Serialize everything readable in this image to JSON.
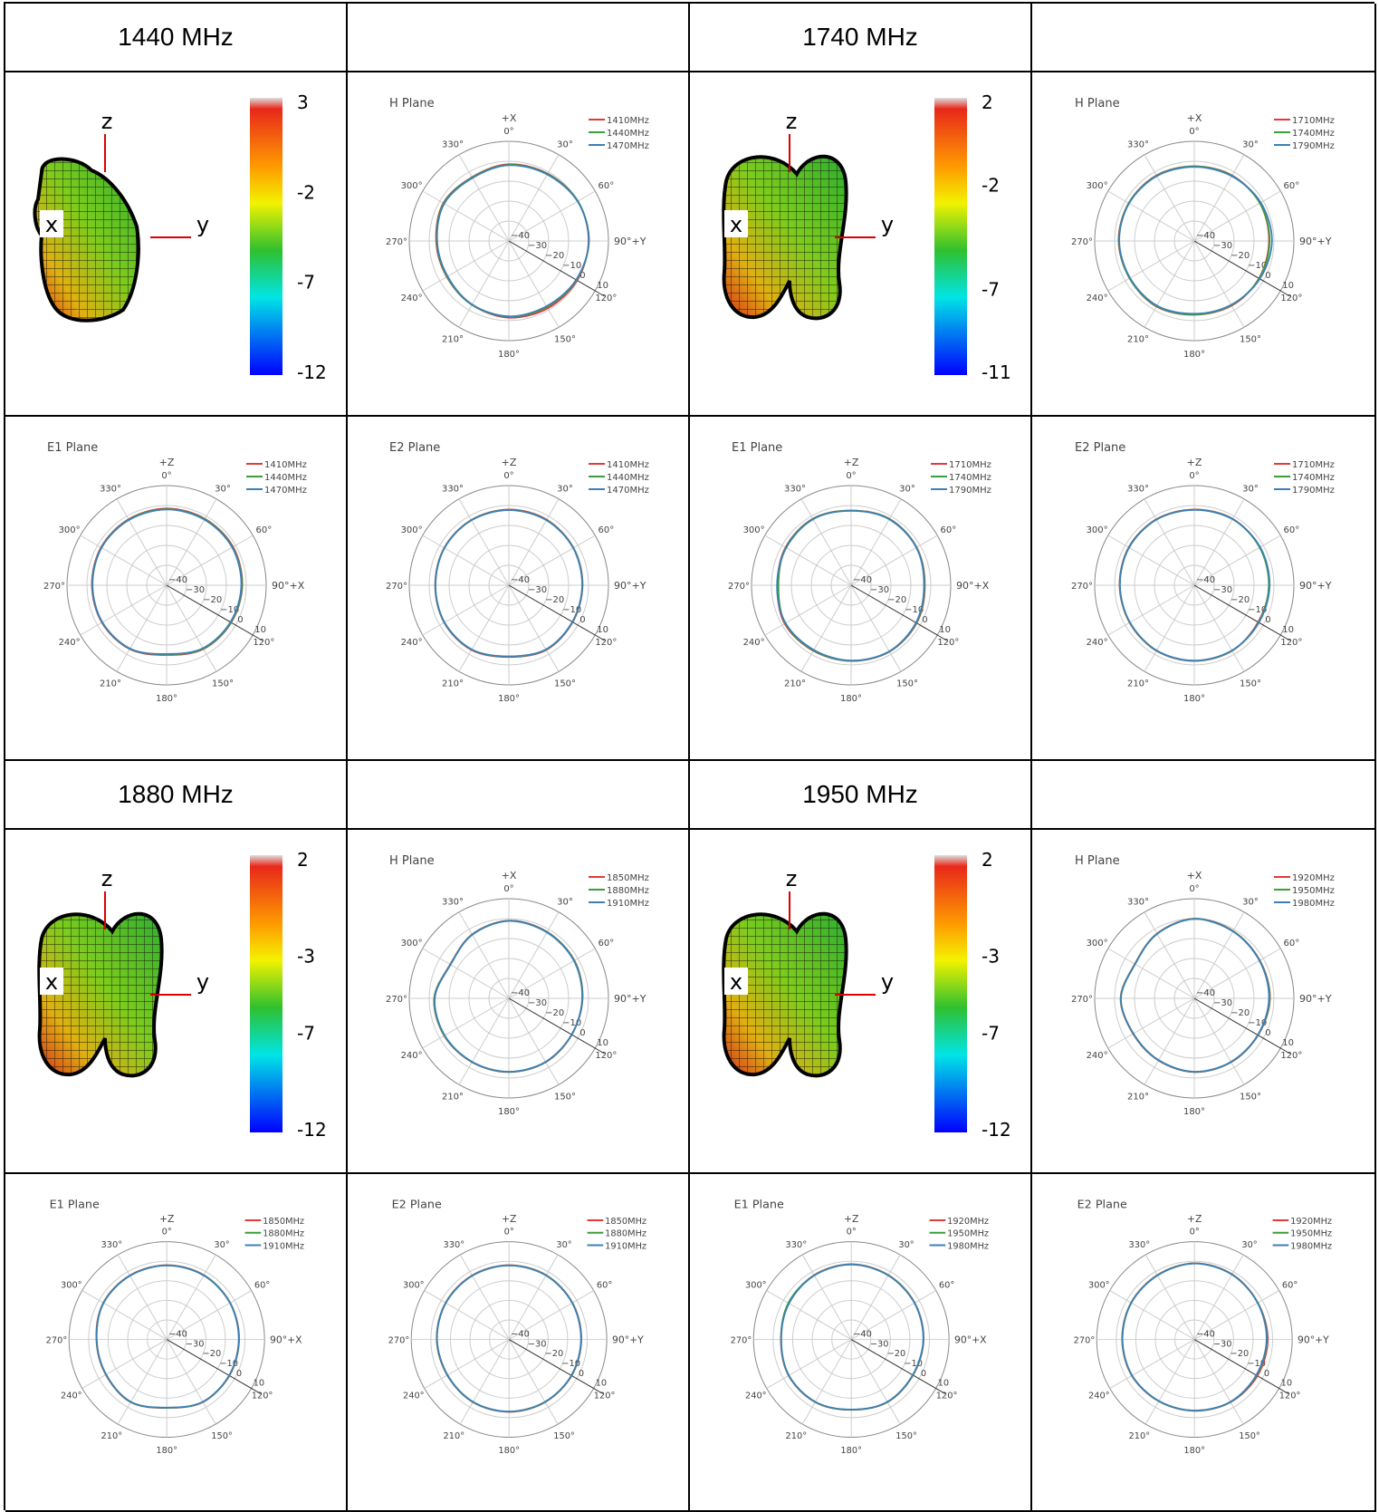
{
  "headers": [
    "1440 MHz",
    "",
    "1740 MHz",
    "",
    "1880 MHz",
    "",
    "1950 MHz",
    ""
  ],
  "colors": {
    "red": "#e03a3a",
    "green": "#3a9e3a",
    "blue": "#3d7fb8",
    "grid": "#cccccc",
    "axis": "#333333",
    "text": "#444444"
  },
  "chart_data": [
    {
      "type": "pattern-3d",
      "group": "1440 MHz",
      "axes": [
        "z",
        "x",
        "y"
      ],
      "scale_ticks": [
        "3",
        "-2",
        "-7",
        "-12"
      ],
      "scale_range": [
        -12,
        3
      ],
      "shape": "single-lobe"
    },
    {
      "type": "polar",
      "group": "1440 MHz",
      "title": "H Plane",
      "axis_label": "+X",
      "right_label": "90°+Y",
      "angle_ticks": [
        "0°",
        "30°",
        "60°",
        "90°",
        "120°",
        "150°",
        "180°",
        "210°",
        "240°",
        "270°",
        "300°",
        "330°"
      ],
      "radial_ticks": [
        "-40",
        "-30",
        "-20",
        "-10",
        "0",
        "10"
      ],
      "r_range": [
        -40,
        10
      ],
      "series": [
        {
          "name": "1410MHz",
          "color": "red",
          "r": [
            -1.5,
            -1,
            0,
            0,
            -0.5,
            -1,
            -1.5,
            -3,
            -4,
            -3.5,
            -2,
            -3
          ]
        },
        {
          "name": "1440MHz",
          "color": "green",
          "r": [
            -1.8,
            -1.2,
            0,
            0.2,
            -0.8,
            -1.8,
            -2,
            -3,
            -4.2,
            -3.8,
            -2.2,
            -3.2
          ]
        },
        {
          "name": "1470MHz",
          "color": "blue",
          "r": [
            -2,
            -1.5,
            -0.2,
            0.2,
            -1,
            -2.2,
            -2.2,
            -3.2,
            -4.5,
            -4,
            -2.5,
            -3.5
          ]
        }
      ]
    },
    {
      "type": "pattern-3d",
      "group": "1740 MHz",
      "axes": [
        "z",
        "x",
        "y"
      ],
      "scale_ticks": [
        "2",
        "-2",
        "-7",
        "-11"
      ],
      "scale_range": [
        -11,
        2
      ],
      "shape": "double-lobe"
    },
    {
      "type": "polar",
      "group": "1740 MHz",
      "title": "H Plane",
      "axis_label": "+X",
      "right_label": "90°+Y",
      "angle_ticks": [
        "0°",
        "30°",
        "60°",
        "90°",
        "120°",
        "150°",
        "180°",
        "210°",
        "240°",
        "270°",
        "300°",
        "330°"
      ],
      "radial_ticks": [
        "-40",
        "-30",
        "-20",
        "-10",
        "0",
        "10"
      ],
      "r_range": [
        -40,
        10
      ],
      "series": [
        {
          "name": "1710MHz",
          "color": "red",
          "r": [
            -2.5,
            -2,
            -2,
            -2.5,
            -2.5,
            -2.5,
            -3,
            -2,
            -2.5,
            -2,
            -2,
            -2
          ]
        },
        {
          "name": "1740MHz",
          "color": "green",
          "r": [
            -2.6,
            -2.2,
            -2,
            -2.2,
            -2.4,
            -2.8,
            -3,
            -2.2,
            -2.5,
            -2.2,
            -2,
            -2.2
          ]
        },
        {
          "name": "1790MHz",
          "color": "blue",
          "r": [
            -2.8,
            -2.4,
            -1.5,
            -1,
            -2,
            -3,
            -3.5,
            -2.5,
            -2.8,
            -2.3,
            -2.2,
            -2.4
          ]
        }
      ]
    },
    {
      "type": "polar",
      "group": "1440 MHz",
      "title": "E1 Plane",
      "axis_label": "+Z",
      "right_label": "90°+X",
      "angle_ticks": [
        "0°",
        "30°",
        "60°",
        "90°",
        "120°",
        "150°",
        "180°",
        "210°",
        "240°",
        "270°",
        "300°",
        "330°"
      ],
      "radial_ticks": [
        "-40",
        "-30",
        "-20",
        "-10",
        "0",
        "10"
      ],
      "r_range": [
        -40,
        10
      ],
      "series": [
        {
          "name": "1410MHz",
          "color": "red",
          "r": [
            -1.5,
            -1.5,
            -1.5,
            -2,
            -2.5,
            -3,
            -5,
            -3,
            -2.5,
            -2.5,
            -2,
            -1.8
          ]
        },
        {
          "name": "1440MHz",
          "color": "green",
          "r": [
            -1.8,
            -1.7,
            -1.8,
            -2.2,
            -2.7,
            -3.2,
            -5.3,
            -3.2,
            -2.7,
            -2.7,
            -2.2,
            -2
          ]
        },
        {
          "name": "1470MHz",
          "color": "blue",
          "r": [
            -2,
            -2,
            -2,
            -2.5,
            -3,
            -3.5,
            -5.5,
            -3.3,
            -2.8,
            -2.8,
            -2.3,
            -2.2
          ]
        }
      ]
    },
    {
      "type": "polar",
      "group": "1440 MHz",
      "title": "E2 Plane",
      "axis_label": "+Z",
      "right_label": "90°+Y",
      "angle_ticks": [
        "0°",
        "30°",
        "60°",
        "90°",
        "120°",
        "150°",
        "180°",
        "210°",
        "240°",
        "270°",
        "300°",
        "330°"
      ],
      "radial_ticks": [
        "-40",
        "-30",
        "-20",
        "-10",
        "0",
        "10"
      ],
      "r_range": [
        -40,
        10
      ],
      "series": [
        {
          "name": "1410MHz",
          "color": "red",
          "r": [
            -2,
            -2,
            -2.5,
            -3,
            -3,
            -2.5,
            -4,
            -2.5,
            -2.5,
            -3,
            -2.5,
            -2.2
          ]
        },
        {
          "name": "1440MHz",
          "color": "green",
          "r": [
            -2.2,
            -2.2,
            -2.6,
            -3.1,
            -3.1,
            -2.7,
            -4.2,
            -2.7,
            -2.6,
            -3.1,
            -2.6,
            -2.3
          ]
        },
        {
          "name": "1470MHz",
          "color": "blue",
          "r": [
            -2.3,
            -2.3,
            -2.7,
            -3.2,
            -3.2,
            -2.8,
            -4.3,
            -2.8,
            -2.7,
            -3.2,
            -2.7,
            -2.4
          ]
        }
      ]
    },
    {
      "type": "polar",
      "group": "1740 MHz",
      "title": "E1 Plane",
      "axis_label": "+Z",
      "right_label": "90°+X",
      "angle_ticks": [
        "0°",
        "30°",
        "60°",
        "90°",
        "120°",
        "150°",
        "180°",
        "210°",
        "240°",
        "270°",
        "300°",
        "330°"
      ],
      "radial_ticks": [
        "-40",
        "-30",
        "-20",
        "-10",
        "0",
        "10"
      ],
      "r_range": [
        -40,
        10
      ],
      "series": [
        {
          "name": "1710MHz",
          "color": "red",
          "r": [
            -2.5,
            -1.5,
            -2,
            -3,
            -2,
            -1.5,
            -2,
            -2,
            -1.5,
            -3,
            -2,
            -1.5
          ]
        },
        {
          "name": "1740MHz",
          "color": "green",
          "r": [
            -2.6,
            -1.6,
            -2.1,
            -3.2,
            -2.2,
            -1.6,
            -2.1,
            -2.2,
            -1.8,
            -3.5,
            -2.2,
            -1.6
          ]
        },
        {
          "name": "1790MHz",
          "color": "blue",
          "r": [
            -2.7,
            -1.8,
            -2.2,
            -3.4,
            -2.4,
            -1.7,
            -2.2,
            -2.5,
            -2,
            -2.8,
            -2.4,
            -1.8
          ]
        }
      ]
    },
    {
      "type": "polar",
      "group": "1740 MHz",
      "title": "E2 Plane",
      "axis_label": "+Z",
      "right_label": "90°+Y",
      "angle_ticks": [
        "0°",
        "30°",
        "60°",
        "90°",
        "120°",
        "150°",
        "180°",
        "210°",
        "240°",
        "270°",
        "300°",
        "330°"
      ],
      "radial_ticks": [
        "-40",
        "-30",
        "-20",
        "-10",
        "0",
        "10"
      ],
      "r_range": [
        -40,
        10
      ],
      "series": [
        {
          "name": "1710MHz",
          "color": "red",
          "r": [
            -2,
            -1.5,
            -2,
            -2.5,
            -3,
            -2,
            -2,
            -2,
            -2.5,
            -2.5,
            -2,
            -1.8
          ]
        },
        {
          "name": "1740MHz",
          "color": "green",
          "r": [
            -2.1,
            -1.6,
            -2.1,
            -2.6,
            -2.7,
            -2.1,
            -2.1,
            -2.1,
            -2.6,
            -2.6,
            -2.1,
            -1.9
          ]
        },
        {
          "name": "1790MHz",
          "color": "blue",
          "r": [
            -2.2,
            -1.7,
            -1.8,
            -2.2,
            -2.5,
            -2.2,
            -2.2,
            -2.2,
            -2.7,
            -2.7,
            -2.2,
            -2
          ]
        }
      ]
    },
    {
      "type": "pattern-3d",
      "group": "1880 MHz",
      "axes": [
        "z",
        "x",
        "y"
      ],
      "scale_ticks": [
        "2",
        "-3",
        "-7",
        "-12"
      ],
      "scale_range": [
        -12,
        2
      ],
      "shape": "double-lobe"
    },
    {
      "type": "polar",
      "group": "1880 MHz",
      "title": "H Plane",
      "axis_label": "+X",
      "right_label": "90°+Y",
      "angle_ticks": [
        "0°",
        "30°",
        "60°",
        "90°",
        "120°",
        "150°",
        "180°",
        "210°",
        "240°",
        "270°",
        "300°",
        "330°"
      ],
      "radial_ticks": [
        "-40",
        "-30",
        "-20",
        "-10",
        "0",
        "10"
      ],
      "r_range": [
        -40,
        10
      ],
      "series": [
        {
          "name": "1850MHz",
          "color": "red",
          "r": [
            -1,
            -1.5,
            -2,
            -3,
            -3.5,
            -3,
            -3,
            -3,
            -2.5,
            -2.5,
            -6,
            -3
          ]
        },
        {
          "name": "1880MHz",
          "color": "green",
          "r": [
            -1.1,
            -1.6,
            -2.1,
            -3.1,
            -3.6,
            -3.1,
            -3.1,
            -3.1,
            -2.6,
            -2.6,
            -6.1,
            -3.1
          ]
        },
        {
          "name": "1910MHz",
          "color": "blue",
          "r": [
            -1.2,
            -1.8,
            -2.3,
            -3.2,
            -3.6,
            -3.2,
            -3.2,
            -3.2,
            -2.8,
            -2.8,
            -6.2,
            -3.2
          ]
        }
      ]
    },
    {
      "type": "pattern-3d",
      "group": "1950 MHz",
      "axes": [
        "z",
        "x",
        "y"
      ],
      "scale_ticks": [
        "2",
        "-3",
        "-7",
        "-12"
      ],
      "scale_range": [
        -12,
        2
      ],
      "shape": "double-lobe"
    },
    {
      "type": "polar",
      "group": "1950 MHz",
      "title": "H Plane",
      "axis_label": "+X",
      "right_label": "90°+Y",
      "angle_ticks": [
        "0°",
        "30°",
        "60°",
        "90°",
        "120°",
        "150°",
        "180°",
        "210°",
        "240°",
        "270°",
        "300°",
        "330°"
      ],
      "radial_ticks": [
        "-40",
        "-30",
        "-20",
        "-10",
        "0",
        "10"
      ],
      "r_range": [
        -40,
        10
      ],
      "series": [
        {
          "name": "1920MHz",
          "color": "red",
          "r": [
            0,
            -1,
            -2,
            -2,
            -3,
            -3,
            -3,
            -4,
            -4.5,
            -3,
            -5.5,
            -2.5
          ]
        },
        {
          "name": "1950MHz",
          "color": "green",
          "r": [
            -0.1,
            -1.1,
            -2.1,
            -2.2,
            -3.1,
            -3.1,
            -3.1,
            -4.1,
            -4.6,
            -3.1,
            -5.6,
            -2.6
          ]
        },
        {
          "name": "1980MHz",
          "color": "blue",
          "r": [
            -0.2,
            -1.2,
            -2.2,
            -2.5,
            -3.2,
            -3.2,
            -3.2,
            -4.2,
            -4.7,
            -3.2,
            -5.7,
            -2.7
          ]
        }
      ]
    },
    {
      "type": "polar",
      "group": "1880 MHz",
      "title": "E1 Plane",
      "axis_label": "+Z",
      "right_label": "90°+X",
      "angle_ticks": [
        "0°",
        "30°",
        "60°",
        "90°",
        "120°",
        "150°",
        "180°",
        "210°",
        "240°",
        "270°",
        "300°",
        "330°"
      ],
      "radial_ticks": [
        "-40",
        "-30",
        "-20",
        "-10",
        "0",
        "10"
      ],
      "r_range": [
        -40,
        10
      ],
      "series": [
        {
          "name": "1850MHz",
          "color": "red",
          "r": [
            -2,
            -2,
            -2.5,
            -3,
            -3,
            -3,
            -5,
            -3,
            -4,
            -4,
            -2.5,
            -2.2
          ]
        },
        {
          "name": "1880MHz",
          "color": "green",
          "r": [
            -2.1,
            -2.1,
            -2.6,
            -3.1,
            -3.1,
            -3.1,
            -5.1,
            -3.1,
            -4.1,
            -4.1,
            -2.6,
            -2.3
          ]
        },
        {
          "name": "1910MHz",
          "color": "blue",
          "r": [
            -2.2,
            -2.2,
            -2.7,
            -3.2,
            -3.2,
            -3.2,
            -5.2,
            -3.2,
            -4.2,
            -4.2,
            -2.7,
            -2.4
          ]
        }
      ]
    },
    {
      "type": "polar",
      "group": "1880 MHz",
      "title": "E2 Plane",
      "axis_label": "+Z",
      "right_label": "90°+Y",
      "angle_ticks": [
        "0°",
        "30°",
        "60°",
        "90°",
        "120°",
        "150°",
        "180°",
        "210°",
        "240°",
        "270°",
        "300°",
        "330°"
      ],
      "radial_ticks": [
        "-40",
        "-30",
        "-20",
        "-10",
        "0",
        "10"
      ],
      "r_range": [
        -40,
        10
      ],
      "series": [
        {
          "name": "1850MHz",
          "color": "red",
          "r": [
            -2,
            -2,
            -2.5,
            -3,
            -3,
            -3,
            -3,
            -3,
            -3.5,
            -3,
            -2.5,
            -2.2
          ]
        },
        {
          "name": "1880MHz",
          "color": "green",
          "r": [
            -2.1,
            -2.1,
            -2.6,
            -3.1,
            -3.1,
            -3.1,
            -3.1,
            -3.1,
            -3.6,
            -3.1,
            -2.6,
            -2.3
          ]
        },
        {
          "name": "1910MHz",
          "color": "blue",
          "r": [
            -2.2,
            -2.2,
            -2.7,
            -3.2,
            -3.2,
            -3.2,
            -3.2,
            -3.2,
            -3.7,
            -3.2,
            -2.7,
            -2.4
          ]
        }
      ]
    },
    {
      "type": "polar",
      "group": "1950 MHz",
      "title": "E1 Plane",
      "axis_label": "+Z",
      "right_label": "90°+X",
      "angle_ticks": [
        "0°",
        "30°",
        "60°",
        "90°",
        "120°",
        "150°",
        "180°",
        "210°",
        "240°",
        "270°",
        "300°",
        "330°"
      ],
      "radial_ticks": [
        "-40",
        "-30",
        "-20",
        "-10",
        "0",
        "10"
      ],
      "r_range": [
        -40,
        10
      ],
      "series": [
        {
          "name": "1920MHz",
          "color": "red",
          "r": [
            -1.5,
            -2,
            -2.5,
            -3,
            -3.5,
            -3,
            -4,
            -3,
            -3,
            -4,
            -3,
            -2
          ]
        },
        {
          "name": "1950MHz",
          "color": "green",
          "r": [
            -1.6,
            -2.1,
            -2.6,
            -3.1,
            -3.6,
            -3.1,
            -4.1,
            -3.1,
            -3.1,
            -4.1,
            -2.8,
            -2.1
          ]
        },
        {
          "name": "1980MHz",
          "color": "blue",
          "r": [
            -1.7,
            -2.2,
            -2.7,
            -3.2,
            -3.7,
            -3.2,
            -4.2,
            -3.2,
            -3.2,
            -4.2,
            -3.2,
            -2.2
          ]
        }
      ]
    },
    {
      "type": "polar",
      "group": "1950 MHz",
      "title": "E2 Plane",
      "axis_label": "+Z",
      "right_label": "90°+Y",
      "angle_ticks": [
        "0°",
        "30°",
        "60°",
        "90°",
        "120°",
        "150°",
        "180°",
        "210°",
        "240°",
        "270°",
        "300°",
        "330°"
      ],
      "radial_ticks": [
        "-40",
        "-30",
        "-20",
        "-10",
        "0",
        "10"
      ],
      "r_range": [
        -40,
        10
      ],
      "series": [
        {
          "name": "1920MHz",
          "color": "red",
          "r": [
            -1,
            -1.5,
            -2.5,
            -2.5,
            -2.8,
            -3,
            -3.5,
            -3.5,
            -3,
            -3,
            -2.5,
            -2
          ]
        },
        {
          "name": "1950MHz",
          "color": "green",
          "r": [
            -1.1,
            -1.6,
            -2.6,
            -2.9,
            -3.3,
            -3.1,
            -3.6,
            -3.6,
            -3.1,
            -3.1,
            -2.6,
            -2.1
          ]
        },
        {
          "name": "1980MHz",
          "color": "blue",
          "r": [
            -1.2,
            -1.7,
            -2.7,
            -3.1,
            -3.5,
            -3.2,
            -3.7,
            -3.7,
            -3.2,
            -3.2,
            -2.7,
            -2.2
          ]
        }
      ]
    }
  ]
}
